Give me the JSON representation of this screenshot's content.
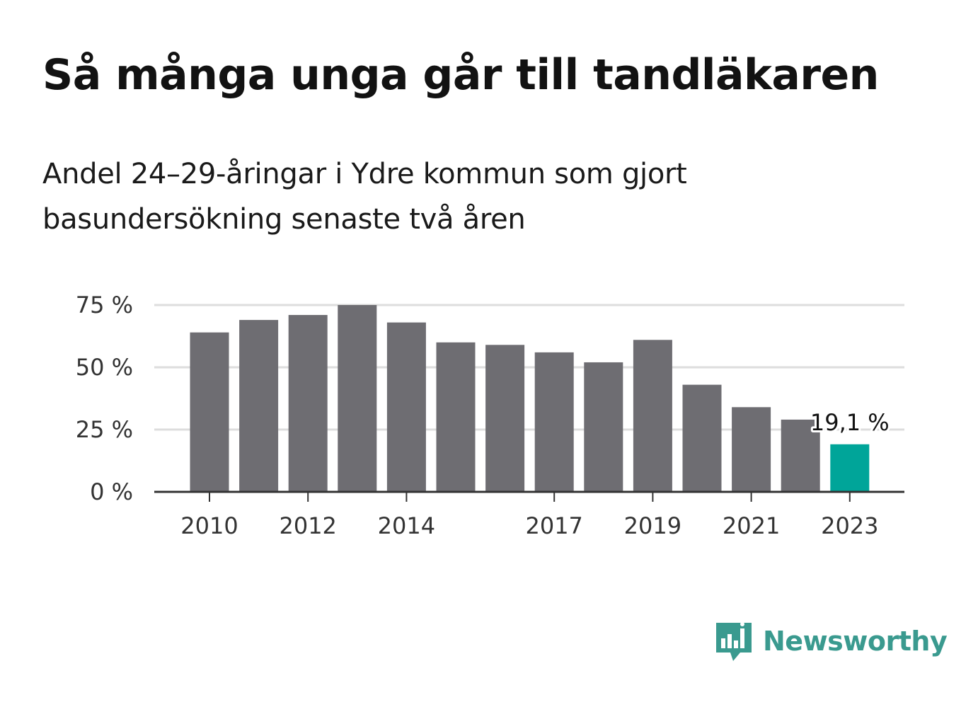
{
  "title": "Så många unga går till tandläkaren",
  "subtitle": "Andel 24–29-åringar i Ydre kommun som gjort basundersökning senaste två åren",
  "brand": {
    "name": "Newsworthy",
    "color": "#3a9a8f",
    "icon": "chart-speech-bubble-icon"
  },
  "colors": {
    "bar": "#6e6d72",
    "highlight": "#00a599",
    "grid": "#dddddd",
    "axis": "#333333"
  },
  "chart_data": {
    "type": "bar",
    "years": [
      2010,
      2011,
      2012,
      2013,
      2014,
      2015,
      2016,
      2017,
      2018,
      2019,
      2020,
      2021,
      2022,
      2023
    ],
    "values": [
      64,
      69,
      71,
      75,
      68,
      60,
      59,
      56,
      52,
      61,
      43,
      34,
      29,
      19.1
    ],
    "x_tick_labels": [
      "2010",
      "2012",
      "2014",
      "2017",
      "2019",
      "2021",
      "2023"
    ],
    "y_ticks": [
      0,
      25,
      50,
      75
    ],
    "y_tick_labels": [
      "0 %",
      "25 %",
      "50 %",
      "75 %"
    ],
    "ylim": [
      0,
      75
    ],
    "highlight_index": 13,
    "data_label": "19,1 %",
    "grid": true
  }
}
